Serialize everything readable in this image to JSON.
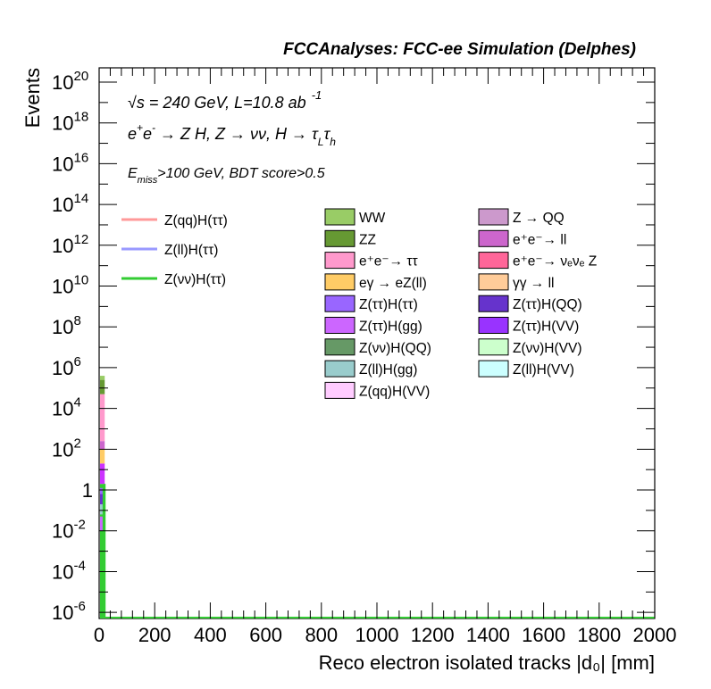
{
  "chart_data": {
    "type": "bar",
    "title": "FCCAnalyses: FCC-ee Simulation (Delphes)",
    "xlabel": "Reco electron isolated tracks |d₀| [mm]",
    "ylabel": "Events",
    "xlim": [
      0,
      2000
    ],
    "ylim_log10": [
      -6.3,
      20.7
    ],
    "yscale": "log",
    "x_ticks": [
      "0",
      "200",
      "400",
      "600",
      "800",
      "1000",
      "1200",
      "1400",
      "1600",
      "1800",
      "2000"
    ],
    "y_ticks": [
      {
        "exp": 20,
        "label": "10",
        "sup": "20"
      },
      {
        "exp": 18,
        "label": "10",
        "sup": "18"
      },
      {
        "exp": 16,
        "label": "10",
        "sup": "16"
      },
      {
        "exp": 14,
        "label": "10",
        "sup": "14"
      },
      {
        "exp": 12,
        "label": "10",
        "sup": "12"
      },
      {
        "exp": 10,
        "label": "10",
        "sup": "10"
      },
      {
        "exp": 8,
        "label": "10",
        "sup": "8"
      },
      {
        "exp": 6,
        "label": "10",
        "sup": "6"
      },
      {
        "exp": 4,
        "label": "10",
        "sup": "4"
      },
      {
        "exp": 2,
        "label": "10",
        "sup": "2"
      },
      {
        "exp": 0,
        "label": "1",
        "sup": ""
      },
      {
        "exp": -2,
        "label": "10",
        "sup": "-2"
      },
      {
        "exp": -4,
        "label": "10",
        "sup": "-4"
      },
      {
        "exp": -6,
        "label": "10",
        "sup": "-6"
      }
    ],
    "annotations": {
      "sqrts": "√s = 240 GeV, L=10.8 ab",
      "lumi_exp": "-1",
      "process_a": "e",
      "process_b": "e",
      "process_c": " → Z H, Z → νν, H → τ",
      "tau_l": "L",
      "tau_h_tau": "τ",
      "tau_h": "h",
      "cut_e": "E",
      "cut_miss": "miss",
      "cut_rest": ">100 GeV, BDT score>0.5"
    },
    "first_bin": {
      "x_range": [
        0,
        20
      ]
    },
    "stack": [
      {
        "name": "Z(νν)H(ττ)",
        "color": "#33cc33",
        "log10_bottom": -6.3,
        "log10_top": 0.3
      },
      {
        "name": "Z(ll)H(ττ)",
        "color": "#cc33ff",
        "log10_bottom": 0.3,
        "log10_top": 1.3
      },
      {
        "name": "eγ → eZ(ll)",
        "color": "#ffcc66",
        "log10_bottom": 1.3,
        "log10_top": 2.0
      },
      {
        "name": "e⁺e⁻ → ll",
        "color": "#cc66cc",
        "log10_bottom": 2.0,
        "log10_top": 2.4
      },
      {
        "name": "e⁺e⁻ → ττ",
        "color": "#ff99cc",
        "log10_bottom": 2.4,
        "log10_top": 4.7
      },
      {
        "name": "ZZ",
        "color": "#669933",
        "log10_bottom": 4.7,
        "log10_top": 5.4
      },
      {
        "name": "WW",
        "color": "#99cc66",
        "log10_bottom": 5.4,
        "log10_top": 5.6
      }
    ],
    "low_overlays": [
      {
        "color": "#9966ff",
        "log10_bottom": -0.4,
        "log10_top": 0.1
      },
      {
        "color": "#6633cc",
        "log10_bottom": -0.8,
        "log10_top": -0.2
      },
      {
        "color": "#cc66ff",
        "log10_bottom": -2.0,
        "log10_top": -1.3
      },
      {
        "color": "#99cccc",
        "log10_bottom": -1.2,
        "log10_top": -0.7
      }
    ],
    "signal_lines": [
      {
        "name": "Z(qq)H(ττ)",
        "color": "#ff9999"
      },
      {
        "name": "Z(ll)H(ττ)",
        "color": "#9999ff"
      },
      {
        "name": "Z(νν)H(ττ)",
        "color": "#33cc33"
      }
    ],
    "legend_col1": [
      {
        "name": "WW",
        "color": "#99cc66"
      },
      {
        "name": "ZZ",
        "color": "#669933"
      },
      {
        "name": "e⁺e⁻→ ττ",
        "color": "#ff99cc"
      },
      {
        "name": "eγ → eZ(ll)",
        "color": "#ffcc66"
      },
      {
        "name": "Z(ττ)H(ττ)",
        "color": "#9966ff"
      },
      {
        "name": "Z(ττ)H(gg)",
        "color": "#cc66ff"
      },
      {
        "name": "Z(νν)H(QQ)",
        "color": "#669966"
      },
      {
        "name": "Z(ll)H(gg)",
        "color": "#99cccc"
      },
      {
        "name": "Z(qq)H(VV)",
        "color": "#ffccff"
      }
    ],
    "legend_col2": [
      {
        "name": "Z → QQ",
        "color": "#cc99cc"
      },
      {
        "name": "e⁺e⁻→ ll",
        "color": "#cc66cc"
      },
      {
        "name": "e⁺e⁻→ νₑνₑ Z",
        "color": "#ff6699"
      },
      {
        "name": "γγ → ll",
        "color": "#ffcc99"
      },
      {
        "name": "Z(ττ)H(QQ)",
        "color": "#6633cc"
      },
      {
        "name": "Z(ττ)H(VV)",
        "color": "#9933ff"
      },
      {
        "name": "Z(νν)H(VV)",
        "color": "#ccffcc"
      },
      {
        "name": "Z(ll)H(VV)",
        "color": "#ccffff"
      }
    ]
  }
}
